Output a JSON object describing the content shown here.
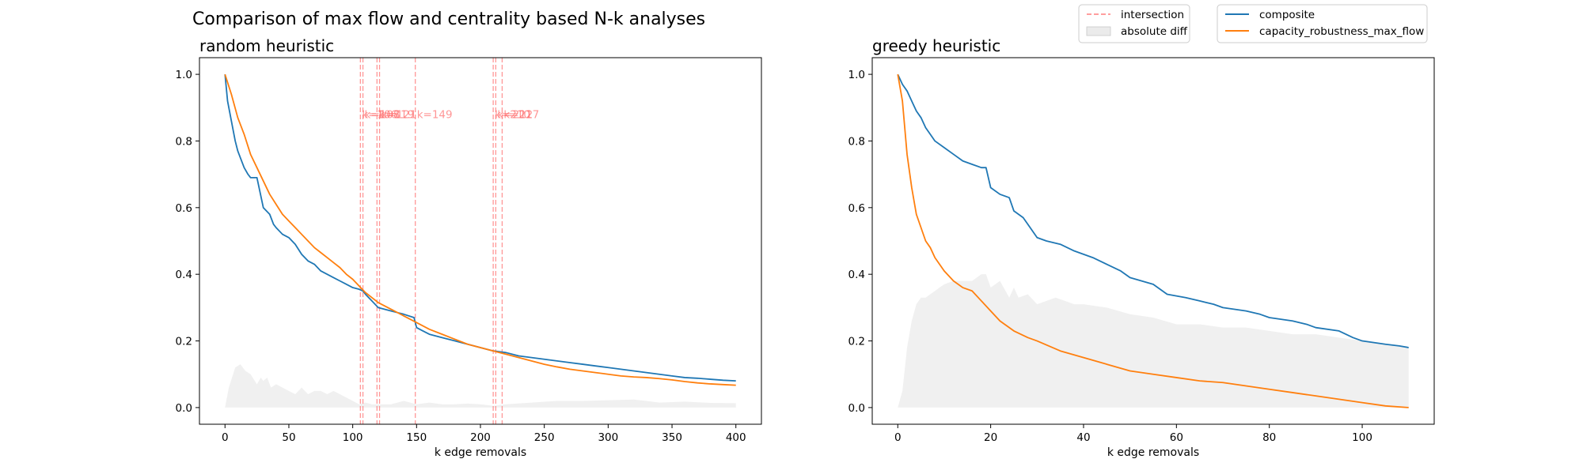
{
  "figure": {
    "suptitle": "Comparison of max flow and centrality based N-k analyses"
  },
  "legend_left": {
    "items": [
      {
        "label": "intersection",
        "kind": "dashed-line",
        "color": "#ff7f7f"
      },
      {
        "label": "absolute diff",
        "kind": "patch",
        "color": "#d3d3d3"
      }
    ]
  },
  "legend_right": {
    "items": [
      {
        "label": "composite",
        "kind": "line",
        "color": "#1f77b4"
      },
      {
        "label": "capacity_robustness_max_flow",
        "kind": "line",
        "color": "#ff7f0e"
      }
    ]
  },
  "chart_data": [
    {
      "type": "line",
      "title": "random heuristic",
      "xlabel": "k edge removals",
      "ylabel": "",
      "xlim": [
        -20,
        420
      ],
      "ylim": [
        -0.05,
        1.05
      ],
      "xticks": [
        0,
        50,
        100,
        150,
        200,
        250,
        300,
        350,
        400
      ],
      "yticks": [
        0.0,
        0.2,
        0.4,
        0.6,
        0.8,
        1.0
      ],
      "ytick_labels": [
        "0.0",
        "0.2",
        "0.4",
        "0.6",
        "0.8",
        "1.0"
      ],
      "grid": false,
      "series": [
        {
          "name": "composite",
          "color": "#1f77b4",
          "x": [
            0,
            2,
            5,
            8,
            10,
            12,
            15,
            18,
            20,
            25,
            30,
            35,
            38,
            40,
            45,
            50,
            55,
            60,
            65,
            70,
            75,
            80,
            85,
            90,
            95,
            100,
            105,
            108,
            110,
            115,
            120,
            125,
            130,
            135,
            140,
            148,
            150,
            155,
            160,
            170,
            180,
            190,
            200,
            210,
            220,
            230,
            240,
            250,
            260,
            270,
            280,
            290,
            300,
            310,
            320,
            330,
            340,
            350,
            360,
            370,
            380,
            390,
            400
          ],
          "values": [
            1.0,
            0.92,
            0.86,
            0.8,
            0.77,
            0.75,
            0.72,
            0.7,
            0.69,
            0.69,
            0.6,
            0.58,
            0.55,
            0.54,
            0.52,
            0.51,
            0.49,
            0.46,
            0.44,
            0.43,
            0.41,
            0.4,
            0.39,
            0.38,
            0.37,
            0.36,
            0.355,
            0.35,
            0.34,
            0.32,
            0.3,
            0.295,
            0.29,
            0.285,
            0.28,
            0.27,
            0.24,
            0.23,
            0.22,
            0.21,
            0.2,
            0.19,
            0.18,
            0.17,
            0.165,
            0.155,
            0.15,
            0.145,
            0.14,
            0.135,
            0.13,
            0.125,
            0.12,
            0.115,
            0.11,
            0.105,
            0.1,
            0.095,
            0.09,
            0.088,
            0.085,
            0.082,
            0.08
          ]
        },
        {
          "name": "capacity_robustness_max_flow",
          "color": "#ff7f0e",
          "x": [
            0,
            5,
            10,
            15,
            20,
            25,
            30,
            35,
            40,
            45,
            50,
            55,
            60,
            65,
            70,
            75,
            80,
            85,
            90,
            95,
            100,
            105,
            110,
            115,
            120,
            130,
            140,
            150,
            160,
            170,
            180,
            190,
            200,
            210,
            220,
            230,
            240,
            250,
            260,
            270,
            280,
            290,
            300,
            310,
            320,
            330,
            340,
            350,
            360,
            370,
            380,
            390,
            400
          ],
          "values": [
            1.0,
            0.94,
            0.87,
            0.82,
            0.76,
            0.72,
            0.68,
            0.64,
            0.61,
            0.58,
            0.56,
            0.54,
            0.52,
            0.5,
            0.48,
            0.465,
            0.45,
            0.435,
            0.42,
            0.4,
            0.385,
            0.365,
            0.345,
            0.33,
            0.315,
            0.295,
            0.275,
            0.255,
            0.235,
            0.22,
            0.205,
            0.19,
            0.18,
            0.17,
            0.16,
            0.15,
            0.14,
            0.13,
            0.122,
            0.115,
            0.11,
            0.105,
            0.1,
            0.095,
            0.092,
            0.09,
            0.087,
            0.083,
            0.078,
            0.074,
            0.071,
            0.069,
            0.067
          ]
        }
      ],
      "absolute_diff": {
        "x": [
          0,
          3,
          8,
          12,
          16,
          20,
          25,
          28,
          30,
          33,
          36,
          40,
          45,
          50,
          55,
          60,
          65,
          70,
          75,
          80,
          85,
          90,
          95,
          100,
          105,
          110,
          115,
          120,
          130,
          140,
          150,
          160,
          170,
          180,
          190,
          200,
          210,
          220,
          240,
          260,
          280,
          300,
          320,
          330,
          340,
          360,
          380,
          400
        ],
        "values": [
          0.0,
          0.06,
          0.12,
          0.13,
          0.11,
          0.1,
          0.07,
          0.09,
          0.08,
          0.09,
          0.06,
          0.07,
          0.06,
          0.05,
          0.04,
          0.06,
          0.04,
          0.05,
          0.05,
          0.04,
          0.05,
          0.04,
          0.03,
          0.02,
          0.01,
          0.015,
          0.01,
          0.01,
          0.01,
          0.02,
          0.01,
          0.015,
          0.01,
          0.01,
          0.012,
          0.01,
          0.005,
          0.01,
          0.015,
          0.02,
          0.02,
          0.022,
          0.024,
          0.02,
          0.015,
          0.018,
          0.014,
          0.013
        ]
      },
      "intersections": [
        {
          "k": 106,
          "label": "k=106"
        },
        {
          "k": 108,
          "label": "k=108"
        },
        {
          "k": 119,
          "label": "k=119"
        },
        {
          "k": 121,
          "label": "k=121"
        },
        {
          "k": 149,
          "label": "k=149"
        },
        {
          "k": 210,
          "label": "k=210"
        },
        {
          "k": 212,
          "label": "k=212"
        },
        {
          "k": 217,
          "label": "k=217"
        }
      ]
    },
    {
      "type": "line",
      "title": "greedy heuristic",
      "xlabel": "k edge removals",
      "ylabel": "",
      "xlim": [
        -5.5,
        115.5
      ],
      "ylim": [
        -0.05,
        1.05
      ],
      "xticks": [
        0,
        20,
        40,
        60,
        80,
        100
      ],
      "yticks": [
        0.0,
        0.2,
        0.4,
        0.6,
        0.8,
        1.0
      ],
      "ytick_labels": [
        "0.0",
        "0.2",
        "0.4",
        "0.6",
        "0.8",
        "1.0"
      ],
      "grid": false,
      "series": [
        {
          "name": "composite",
          "color": "#1f77b4",
          "x": [
            0,
            1,
            2,
            3,
            4,
            5,
            6,
            7,
            8,
            10,
            12,
            14,
            16,
            18,
            19,
            20,
            22,
            24,
            25,
            27,
            28,
            30,
            32,
            35,
            38,
            40,
            42,
            45,
            48,
            50,
            55,
            58,
            62,
            65,
            68,
            70,
            75,
            78,
            80,
            85,
            88,
            90,
            95,
            98,
            100,
            105,
            108,
            110
          ],
          "values": [
            1.0,
            0.97,
            0.95,
            0.92,
            0.89,
            0.87,
            0.84,
            0.82,
            0.8,
            0.78,
            0.76,
            0.74,
            0.73,
            0.72,
            0.72,
            0.66,
            0.64,
            0.63,
            0.59,
            0.57,
            0.55,
            0.51,
            0.5,
            0.49,
            0.47,
            0.46,
            0.45,
            0.43,
            0.41,
            0.39,
            0.37,
            0.34,
            0.33,
            0.32,
            0.31,
            0.3,
            0.29,
            0.28,
            0.27,
            0.26,
            0.25,
            0.24,
            0.23,
            0.21,
            0.2,
            0.19,
            0.185,
            0.18
          ]
        },
        {
          "name": "capacity_robustness_max_flow",
          "color": "#ff7f0e",
          "x": [
            0,
            1,
            2,
            3,
            4,
            5,
            6,
            7,
            8,
            10,
            12,
            14,
            16,
            18,
            20,
            22,
            25,
            28,
            30,
            35,
            40,
            45,
            50,
            55,
            60,
            65,
            70,
            75,
            80,
            85,
            90,
            95,
            100,
            105,
            110
          ],
          "values": [
            1.0,
            0.92,
            0.76,
            0.66,
            0.58,
            0.54,
            0.5,
            0.48,
            0.45,
            0.41,
            0.38,
            0.36,
            0.35,
            0.32,
            0.29,
            0.26,
            0.23,
            0.21,
            0.2,
            0.17,
            0.15,
            0.13,
            0.11,
            0.1,
            0.09,
            0.08,
            0.075,
            0.065,
            0.055,
            0.045,
            0.035,
            0.025,
            0.015,
            0.005,
            0.0
          ]
        }
      ],
      "absolute_diff": {
        "x": [
          0,
          1,
          2,
          3,
          4,
          5,
          6,
          7,
          8,
          9,
          10,
          12,
          14,
          16,
          18,
          19,
          20,
          22,
          24,
          25,
          26,
          28,
          30,
          32,
          34,
          36,
          38,
          40,
          45,
          50,
          55,
          60,
          65,
          70,
          75,
          80,
          85,
          90,
          95,
          100,
          105,
          110
        ],
        "values": [
          0.0,
          0.05,
          0.18,
          0.26,
          0.31,
          0.33,
          0.33,
          0.34,
          0.35,
          0.36,
          0.37,
          0.38,
          0.38,
          0.38,
          0.4,
          0.4,
          0.36,
          0.38,
          0.33,
          0.36,
          0.33,
          0.34,
          0.31,
          0.32,
          0.33,
          0.32,
          0.31,
          0.31,
          0.3,
          0.28,
          0.27,
          0.25,
          0.25,
          0.24,
          0.24,
          0.23,
          0.22,
          0.22,
          0.21,
          0.2,
          0.19,
          0.18
        ]
      }
    }
  ]
}
